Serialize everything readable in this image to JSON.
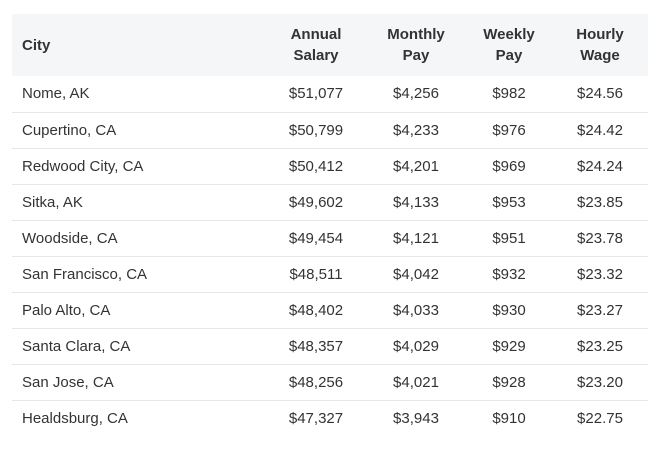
{
  "table": {
    "headers": [
      "City",
      "Annual Salary",
      "Monthly Pay",
      "Weekly Pay",
      "Hourly Wage"
    ],
    "header_lines": [
      [
        "City"
      ],
      [
        "Annual",
        "Salary"
      ],
      [
        "Monthly",
        "Pay"
      ],
      [
        "Weekly",
        "Pay"
      ],
      [
        "Hourly",
        "Wage"
      ]
    ],
    "rows": [
      [
        "Nome, AK",
        "$51,077",
        "$4,256",
        "$982",
        "$24.56"
      ],
      [
        "Cupertino, CA",
        "$50,799",
        "$4,233",
        "$976",
        "$24.42"
      ],
      [
        "Redwood City, CA",
        "$50,412",
        "$4,201",
        "$969",
        "$24.24"
      ],
      [
        "Sitka, AK",
        "$49,602",
        "$4,133",
        "$953",
        "$23.85"
      ],
      [
        "Woodside, CA",
        "$49,454",
        "$4,121",
        "$951",
        "$23.78"
      ],
      [
        "San Francisco, CA",
        "$48,511",
        "$4,042",
        "$932",
        "$23.32"
      ],
      [
        "Palo Alto, CA",
        "$48,402",
        "$4,033",
        "$930",
        "$23.27"
      ],
      [
        "Santa Clara, CA",
        "$48,357",
        "$4,029",
        "$929",
        "$23.25"
      ],
      [
        "San Jose, CA",
        "$48,256",
        "$4,021",
        "$928",
        "$23.20"
      ],
      [
        "Healdsburg, CA",
        "$47,327",
        "$3,943",
        "$910",
        "$22.75"
      ]
    ]
  },
  "colors": {
    "header_bg": "#f5f6f7",
    "text": "#333333",
    "row_border": "#e6e6e6"
  }
}
